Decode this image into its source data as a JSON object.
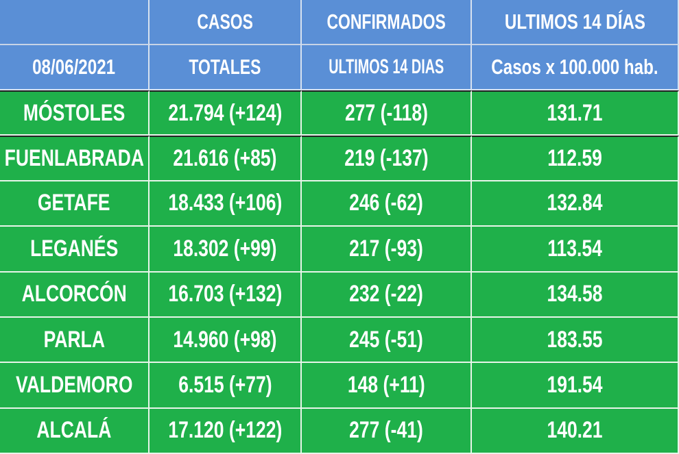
{
  "table": {
    "header_rows": [
      [
        "",
        "CASOS",
        "CONFIRMADOS",
        "ULTIMOS 14 DÍAS"
      ],
      [
        "08/06/2021",
        "TOTALES",
        "ULTIMOS 14 DIAS",
        "Casos x 100.000 hab."
      ]
    ],
    "rows": [
      [
        "MÓSTOLES",
        "21.794 (+124)",
        "277 (-118)",
        "131.71"
      ],
      [
        "FUENLABRADA",
        "21.616 (+85)",
        "219 (-137)",
        "112.59"
      ],
      [
        "GETAFE",
        "18.433 (+106)",
        "246 (-62)",
        "132.84"
      ],
      [
        "LEGANÉS",
        "18.302 (+99)",
        "217 (-93)",
        "113.54"
      ],
      [
        "ALCORCÓN",
        "16.703 (+132)",
        "232 (-22)",
        "134.58"
      ],
      [
        "PARLA",
        "14.960 (+98)",
        "245 (-51)",
        "183.55"
      ],
      [
        "VALDEMORO",
        "6.515 (+77)",
        "148 (+11)",
        "191.54"
      ],
      [
        "ALCALÁ",
        "17.120 (+122)",
        "277 (-41)",
        "140.21"
      ]
    ]
  }
}
